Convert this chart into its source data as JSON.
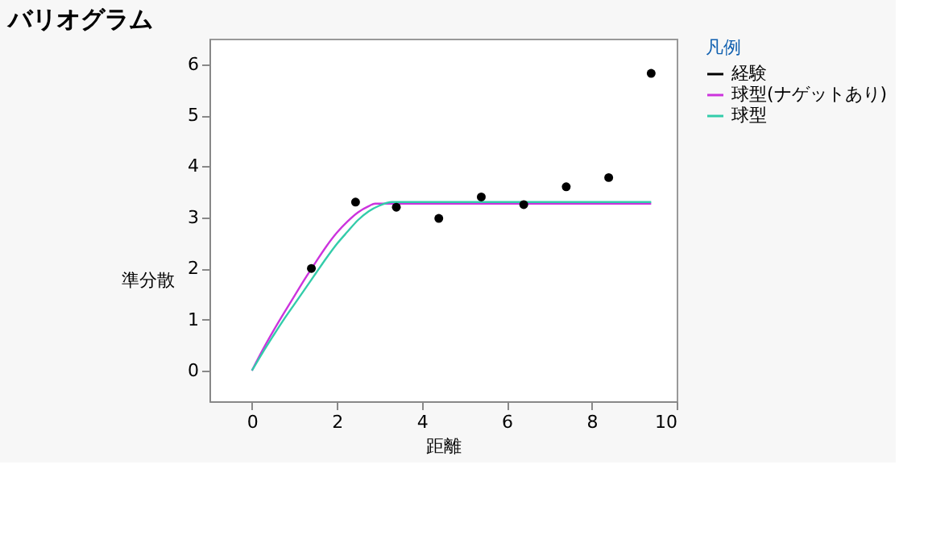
{
  "chart_data": {
    "type": "scatter",
    "title": "バリオグラム",
    "xlabel": "距離",
    "ylabel": "準分散",
    "legend_title": "凡例",
    "legend": "top right",
    "grid": false,
    "marker": "circle",
    "xlim": [
      -1,
      10
    ],
    "xticks": [
      0,
      2,
      4,
      6,
      8,
      10
    ],
    "ylim": [
      -0.6,
      6.5
    ],
    "yticks": [
      0,
      1,
      2,
      3,
      4,
      5,
      6
    ],
    "series": [
      {
        "name": "経験",
        "color": "#000000",
        "x": [
          1.4,
          2.44,
          3.4,
          4.4,
          5.4,
          6.4,
          7.4,
          8.4,
          9.4
        ],
        "values": [
          2.0,
          3.3,
          3.2,
          2.98,
          3.4,
          3.25,
          3.6,
          3.78,
          5.82
        ]
      },
      {
        "name": "球型(ナゲットあり)",
        "type": "line",
        "marker": "none",
        "color": "#cc33dd",
        "x": [
          0,
          0.25,
          0.5,
          0.75,
          1,
          1.25,
          1.5,
          1.75,
          2,
          2.25,
          2.5,
          2.75,
          2.9,
          4,
          6,
          8,
          9.4
        ],
        "values": [
          0,
          0.4,
          0.77,
          1.12,
          1.46,
          1.8,
          2.12,
          2.43,
          2.7,
          2.92,
          3.1,
          3.22,
          3.27,
          3.27,
          3.27,
          3.27,
          3.27
        ]
      },
      {
        "name": "球型",
        "type": "line",
        "marker": "none",
        "color": "#33ccaa",
        "x": [
          0,
          0.25,
          0.5,
          0.75,
          1,
          1.25,
          1.5,
          1.75,
          2,
          2.25,
          2.5,
          2.75,
          3,
          3.3,
          4,
          6,
          8,
          9.4
        ],
        "values": [
          0,
          0.35,
          0.68,
          1.0,
          1.3,
          1.6,
          1.9,
          2.2,
          2.48,
          2.72,
          2.95,
          3.12,
          3.23,
          3.3,
          3.3,
          3.3,
          3.3,
          3.3
        ]
      }
    ]
  }
}
